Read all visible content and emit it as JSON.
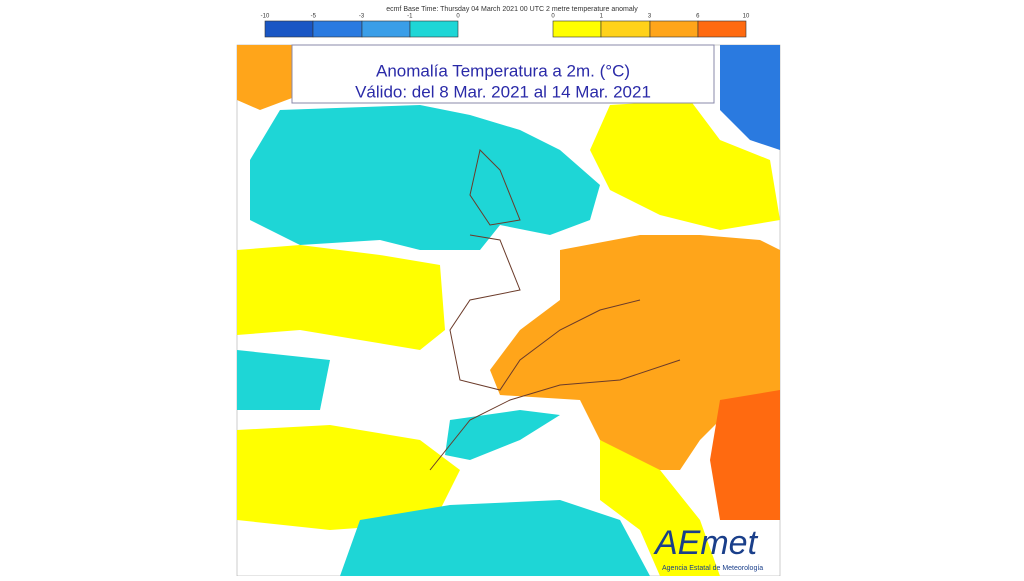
{
  "header": {
    "text": "ecmf  Base Time: Thursday 04 March 2021 00 UTC 2 metre temperature anomaly"
  },
  "legend": {
    "cold_labels": [
      -10,
      -5,
      -3,
      -1,
      0
    ],
    "warm_labels": [
      0,
      1,
      3,
      6,
      10
    ]
  },
  "title": {
    "line1": "Anomalía Temperatura a 2m. (°C)",
    "line2": "Válido: del 8 Mar. 2021 al 14 Mar. 2021"
  },
  "logo": {
    "name": "AEmet",
    "subtitle": "Agencia Estatal de Meteorología"
  }
}
